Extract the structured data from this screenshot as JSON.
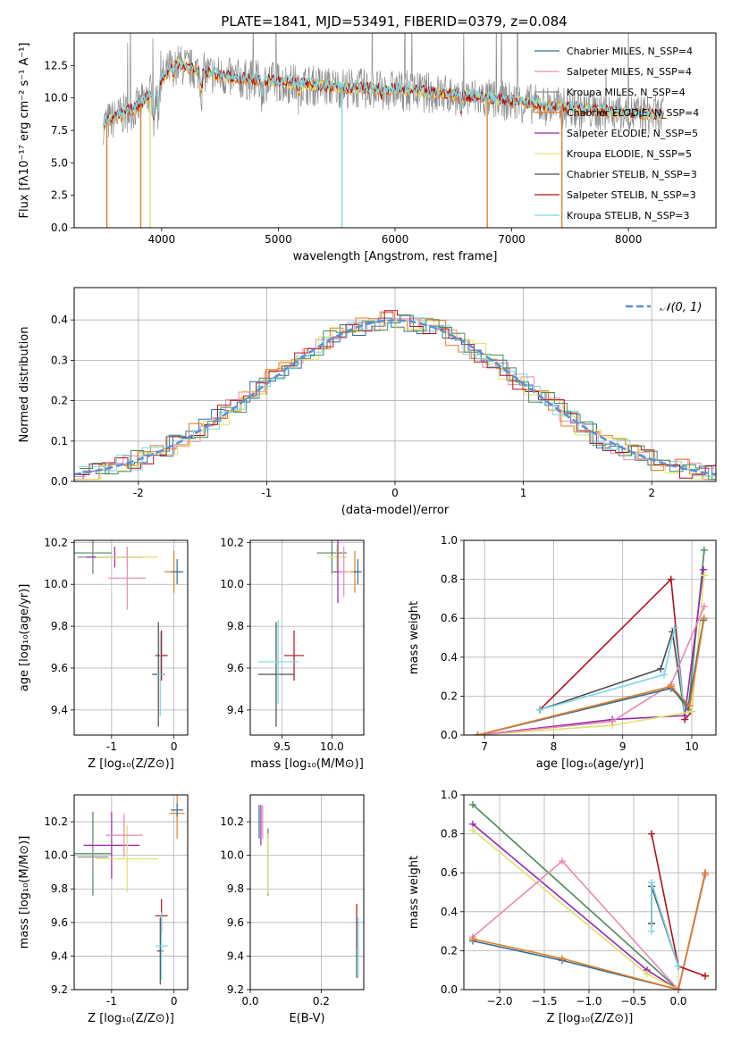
{
  "figure_title": "PLATE=1841, MJD=53491, FIBERID=0379, z=0.084",
  "colors": {
    "Chabrier MILES": "#2f6d9e",
    "Salpeter MILES": "#e68ab5",
    "Kroupa MILES": "#8d8d8d",
    "Chabrier ELODIE": "#e67e22",
    "Salpeter ELODIE": "#9b27b0",
    "Kroupa ELODIE": "#dfe36c",
    "Chabrier STELIB": "#4d4d4d",
    "Salpeter STELIB": "#b0101c",
    "Kroupa STELIB": "#79d8e8",
    "normal": "#5b8fd6",
    "green": "#4f8a5a"
  },
  "chart_data": [
    {
      "id": "spectrum",
      "type": "line",
      "xlabel": "wavelength [Angstrom, rest frame]",
      "ylabel": "Flux [fλ10⁻¹⁷ erg cm⁻² s⁻¹ A⁻¹]",
      "xlim": [
        3250,
        8750
      ],
      "ylim": [
        0,
        15
      ],
      "xticks": [
        4000,
        5000,
        6000,
        7000,
        8000
      ],
      "yticks": [
        "0.0",
        "2.5",
        "5.0",
        "7.5",
        "10.0",
        "12.5"
      ],
      "legend": [
        "Chabrier MILES, N_SSP=4",
        "Salpeter MILES, N_SSP=4",
        "Kroupa MILES, N_SSP=4",
        "Chabrier ELODIE, N_SSP=4",
        "Salpeter ELODIE, N_SSP=5",
        "Kroupa ELODIE, N_SSP=5",
        "Chabrier STELIB, N_SSP=3",
        "Salpeter STELIB, N_SSP=3",
        "Kroupa STELIB, N_SSP=3"
      ],
      "legend_position": "top-right",
      "continuum": {
        "x": [
          3500,
          3800,
          4000,
          4100,
          4300,
          4600,
          5000,
          5500,
          6000,
          6400,
          6800,
          7200,
          7600,
          8000,
          8300
        ],
        "y": [
          8.0,
          9.3,
          11.3,
          12.7,
          12.1,
          11.5,
          11.2,
          10.8,
          10.6,
          10.3,
          9.9,
          9.5,
          9.1,
          8.8,
          8.6
        ]
      }
    },
    {
      "id": "residuals",
      "type": "line",
      "xlabel": "(data-model)/error",
      "ylabel": "Normed distribution",
      "xlim": [
        -2.5,
        2.5
      ],
      "ylim": [
        0,
        0.48
      ],
      "xticks": [
        -2,
        -1,
        0,
        1,
        2
      ],
      "yticks": [
        "0.0",
        "0.1",
        "0.2",
        "0.3",
        "0.4"
      ],
      "legend": [
        "𝒩(0, 1)"
      ],
      "legend_position": "top-right",
      "grid": true
    },
    {
      "id": "age_vs_Z",
      "type": "scatter",
      "xlabel": "Z [log₁₀(Z/Z⊙)]",
      "ylabel": "age  [log₁₀(age/yr)]",
      "xlim": [
        -1.6,
        0.22
      ],
      "ylim": [
        9.28,
        10.21
      ],
      "xticks": [
        -1,
        0
      ],
      "yticks": [
        "9.4",
        "9.6",
        "9.8",
        "10.0",
        "10.2"
      ],
      "grid": true,
      "points": [
        {
          "x": -1.3,
          "y": 10.15,
          "xerr": 0.3,
          "yerr": 0.1,
          "series": "green"
        },
        {
          "x": -1.3,
          "y": 10.13,
          "xerr": 0.25,
          "yerr": 0.06,
          "series": "Kroupa MILES"
        },
        {
          "x": -0.95,
          "y": 10.13,
          "xerr": 0.45,
          "yerr": 0.05,
          "series": "Salpeter ELODIE"
        },
        {
          "x": -0.75,
          "y": 10.13,
          "xerr": 0.5,
          "yerr": 0.05,
          "series": "Kroupa ELODIE"
        },
        {
          "x": -0.75,
          "y": 10.03,
          "xerr": 0.3,
          "yerr": 0.15,
          "series": "Salpeter MILES"
        },
        {
          "x": 0.0,
          "y": 10.06,
          "xerr": 0.15,
          "yerr": 0.1,
          "series": "Chabrier ELODIE"
        },
        {
          "x": 0.05,
          "y": 10.06,
          "xerr": 0.1,
          "yerr": 0.06,
          "series": "Chabrier MILES"
        },
        {
          "x": -0.2,
          "y": 9.66,
          "xerr": 0.1,
          "yerr": 0.12,
          "series": "Salpeter STELIB"
        },
        {
          "x": -0.25,
          "y": 9.57,
          "xerr": 0.1,
          "yerr": 0.25,
          "series": "Chabrier STELIB"
        },
        {
          "x": -0.22,
          "y": 9.57,
          "xerr": 0.05,
          "yerr": 0.2,
          "series": "Kroupa STELIB"
        }
      ]
    },
    {
      "id": "age_vs_mass",
      "type": "scatter",
      "xlabel": "mass [log₁₀(M/M⊙)]",
      "ylabel": "",
      "xlim": [
        9.18,
        10.32
      ],
      "ylim": [
        9.28,
        10.21
      ],
      "xticks": [
        "9.5",
        "10.0"
      ],
      "yticks": [
        "9.4",
        "9.6",
        "9.8",
        "10.0",
        "10.2"
      ],
      "grid": true,
      "points": [
        {
          "x": 10.0,
          "y": 10.15,
          "xerr": 0.15,
          "yerr": 0.1,
          "series": "green"
        },
        {
          "x": 10.05,
          "y": 10.13,
          "xerr": 0.1,
          "yerr": 0.06,
          "series": "Kroupa ELODIE"
        },
        {
          "x": 10.06,
          "y": 10.06,
          "xerr": 0.05,
          "yerr": 0.15,
          "series": "Salpeter ELODIE"
        },
        {
          "x": 10.12,
          "y": 10.06,
          "xerr": 0.05,
          "yerr": 0.12,
          "series": "Salpeter MILES"
        },
        {
          "x": 10.23,
          "y": 10.06,
          "xerr": 0.05,
          "yerr": 0.1,
          "series": "Chabrier ELODIE"
        },
        {
          "x": 10.26,
          "y": 10.06,
          "xerr": 0.04,
          "yerr": 0.06,
          "series": "Chabrier MILES"
        },
        {
          "x": 9.62,
          "y": 9.66,
          "xerr": 0.1,
          "yerr": 0.12,
          "series": "Salpeter STELIB"
        },
        {
          "x": 9.44,
          "y": 9.57,
          "xerr": 0.18,
          "yerr": 0.25,
          "series": "Chabrier STELIB"
        },
        {
          "x": 9.46,
          "y": 9.63,
          "xerr": 0.2,
          "yerr": 0.2,
          "series": "Kroupa STELIB"
        }
      ]
    },
    {
      "id": "mass_weight_vs_age",
      "type": "line",
      "xlabel": "age  [log₁₀(age/yr)]",
      "ylabel": "mass weight",
      "xlim": [
        6.7,
        10.35
      ],
      "ylim": [
        0,
        1.0
      ],
      "xticks": [
        7,
        8,
        9,
        10
      ],
      "yticks": [
        "0.0",
        "0.2",
        "0.4",
        "0.6",
        "0.8",
        "1.0"
      ],
      "grid": true,
      "series": [
        {
          "key": "Salpeter STELIB",
          "x": [
            7.8,
            9.7,
            9.9,
            10.0
          ],
          "y": [
            0.13,
            0.8,
            0.08,
            0.12
          ]
        },
        {
          "key": "Chabrier STELIB",
          "x": [
            7.8,
            9.55,
            9.72,
            9.9
          ],
          "y": [
            0.13,
            0.34,
            0.53,
            0.1
          ]
        },
        {
          "key": "Kroupa STELIB",
          "x": [
            7.8,
            9.6,
            9.75,
            9.9
          ],
          "y": [
            0.13,
            0.31,
            0.55,
            0.1
          ]
        },
        {
          "key": "green",
          "x": [
            6.9,
            9.7,
            9.95,
            10.18
          ],
          "y": [
            0.0,
            0.25,
            0.13,
            0.95
          ]
        },
        {
          "key": "Salpeter ELODIE",
          "x": [
            6.9,
            8.85,
            9.9,
            10.17
          ],
          "y": [
            0.0,
            0.08,
            0.1,
            0.85
          ]
        },
        {
          "key": "Kroupa ELODIE",
          "x": [
            6.9,
            8.85,
            10.0,
            10.18
          ],
          "y": [
            0.0,
            0.05,
            0.12,
            0.82
          ]
        },
        {
          "key": "Salpeter MILES",
          "x": [
            6.9,
            8.85,
            9.7,
            10.18
          ],
          "y": [
            0.0,
            0.07,
            0.26,
            0.66
          ]
        },
        {
          "key": "Chabrier MILES",
          "x": [
            6.9,
            9.7,
            9.95,
            10.17
          ],
          "y": [
            0.0,
            0.24,
            0.15,
            0.59
          ]
        },
        {
          "key": "Chabrier ELODIE",
          "x": [
            6.9,
            9.7,
            9.97,
            10.18
          ],
          "y": [
            0.0,
            0.25,
            0.15,
            0.6
          ]
        }
      ]
    },
    {
      "id": "mass_vs_Z",
      "type": "scatter",
      "xlabel": "Z [log₁₀(Z/Z⊙)]",
      "ylabel": "mass [log₁₀(M/M⊙)]",
      "xlim": [
        -1.6,
        0.22
      ],
      "ylim": [
        9.2,
        10.36
      ],
      "xticks": [
        -1,
        0
      ],
      "yticks": [
        "9.2",
        "9.4",
        "9.6",
        "9.8",
        "10.0",
        "10.2"
      ],
      "grid": true,
      "points": [
        {
          "x": -1.3,
          "y": 10.01,
          "xerr": 0.3,
          "yerr": 0.25,
          "series": "green"
        },
        {
          "x": -1.3,
          "y": 9.99,
          "xerr": 0.25,
          "yerr": 0.1,
          "series": "Kroupa MILES"
        },
        {
          "x": -1.0,
          "y": 10.06,
          "xerr": 0.45,
          "yerr": 0.2,
          "series": "Salpeter ELODIE"
        },
        {
          "x": -0.75,
          "y": 9.98,
          "xerr": 0.5,
          "yerr": 0.2,
          "series": "Kroupa ELODIE"
        },
        {
          "x": -0.8,
          "y": 10.12,
          "xerr": 0.3,
          "yerr": 0.13,
          "series": "Salpeter MILES"
        },
        {
          "x": 0.05,
          "y": 10.25,
          "xerr": 0.12,
          "yerr": 0.15,
          "series": "Chabrier ELODIE"
        },
        {
          "x": 0.05,
          "y": 10.27,
          "xerr": 0.1,
          "yerr": 0.04,
          "series": "Chabrier MILES"
        },
        {
          "x": -0.2,
          "y": 9.64,
          "xerr": 0.1,
          "yerr": 0.1,
          "series": "Salpeter STELIB"
        },
        {
          "x": -0.22,
          "y": 9.43,
          "xerr": 0.05,
          "yerr": 0.2,
          "series": "Chabrier STELIB"
        },
        {
          "x": -0.2,
          "y": 9.46,
          "xerr": 0.1,
          "yerr": 0.2,
          "series": "Kroupa STELIB"
        }
      ]
    },
    {
      "id": "mass_vs_EBV",
      "type": "scatter",
      "xlabel": "E(B-V)",
      "ylabel": "",
      "xlim": [
        0.0,
        0.32
      ],
      "ylim": [
        9.2,
        10.36
      ],
      "xticks": [
        "0.0",
        "0.2"
      ],
      "yticks": [
        "9.2",
        "9.4",
        "9.6",
        "9.8",
        "10.0",
        "10.2"
      ],
      "grid": true,
      "points": [
        {
          "x": 0.025,
          "y": 10.2,
          "xerr": 0,
          "yerr": 0.1,
          "series": "Chabrier MILES"
        },
        {
          "x": 0.03,
          "y": 10.18,
          "xerr": 0,
          "yerr": 0.12,
          "series": "Salpeter ELODIE"
        },
        {
          "x": 0.035,
          "y": 10.2,
          "xerr": 0,
          "yerr": 0.1,
          "series": "Salpeter MILES"
        },
        {
          "x": 0.05,
          "y": 9.96,
          "xerr": 0,
          "yerr": 0.2,
          "series": "green"
        },
        {
          "x": 0.05,
          "y": 9.95,
          "xerr": 0,
          "yerr": 0.18,
          "series": "Kroupa ELODIE"
        },
        {
          "x": 0.3,
          "y": 9.58,
          "xerr": 0,
          "yerr": 0.13,
          "series": "Salpeter STELIB"
        },
        {
          "x": 0.3,
          "y": 9.45,
          "xerr": 0,
          "yerr": 0.18,
          "series": "Chabrier STELIB"
        },
        {
          "x": 0.305,
          "y": 9.45,
          "xerr": 0,
          "yerr": 0.18,
          "series": "Kroupa STELIB"
        }
      ]
    },
    {
      "id": "mass_weight_vs_Z",
      "type": "line",
      "xlabel": "Z [log₁₀(Z/Z⊙)]",
      "ylabel": "mass weight",
      "xlim": [
        -2.4,
        0.42
      ],
      "ylim": [
        0,
        1.0
      ],
      "xticks": [
        "−2.0",
        "−1.5",
        "−1.0",
        "−0.5",
        "0.0"
      ],
      "yticks": [
        "0.0",
        "0.2",
        "0.4",
        "0.6",
        "0.8",
        "1.0"
      ],
      "grid": true,
      "series": [
        {
          "key": "green",
          "x": [
            -2.3,
            0.0,
            0.3
          ],
          "y": [
            0.95,
            0.0,
            0.59
          ]
        },
        {
          "key": "Salpeter ELODIE",
          "x": [
            -2.3,
            -0.35,
            0.0,
            0.3
          ],
          "y": [
            0.85,
            0.1,
            0.0,
            0.59
          ]
        },
        {
          "key": "Kroupa ELODIE",
          "x": [
            -2.3,
            -0.35,
            0.0,
            0.3
          ],
          "y": [
            0.82,
            0.08,
            0.0,
            0.59
          ]
        },
        {
          "key": "Salpeter MILES",
          "x": [
            -2.3,
            -1.3,
            0.0,
            0.3
          ],
          "y": [
            0.27,
            0.66,
            0.0,
            0.59
          ]
        },
        {
          "key": "Chabrier MILES",
          "x": [
            -2.3,
            -1.3,
            0.0,
            0.3
          ],
          "y": [
            0.25,
            0.15,
            0.0,
            0.6
          ]
        },
        {
          "key": "Chabrier ELODIE",
          "x": [
            -2.3,
            -1.3,
            0.0,
            0.3
          ],
          "y": [
            0.26,
            0.16,
            0.0,
            0.6
          ]
        },
        {
          "key": "Salpeter STELIB",
          "x": [
            -0.3,
            0.0,
            0.3
          ],
          "y": [
            0.8,
            0.12,
            0.07
          ]
        },
        {
          "key": "Chabrier STELIB",
          "x": [
            -0.3,
            -0.3,
            0.0
          ],
          "y": [
            0.34,
            0.53,
            0.12
          ]
        },
        {
          "key": "Kroupa STELIB",
          "x": [
            -0.3,
            -0.3,
            0.0
          ],
          "y": [
            0.3,
            0.55,
            0.12
          ]
        }
      ]
    }
  ]
}
